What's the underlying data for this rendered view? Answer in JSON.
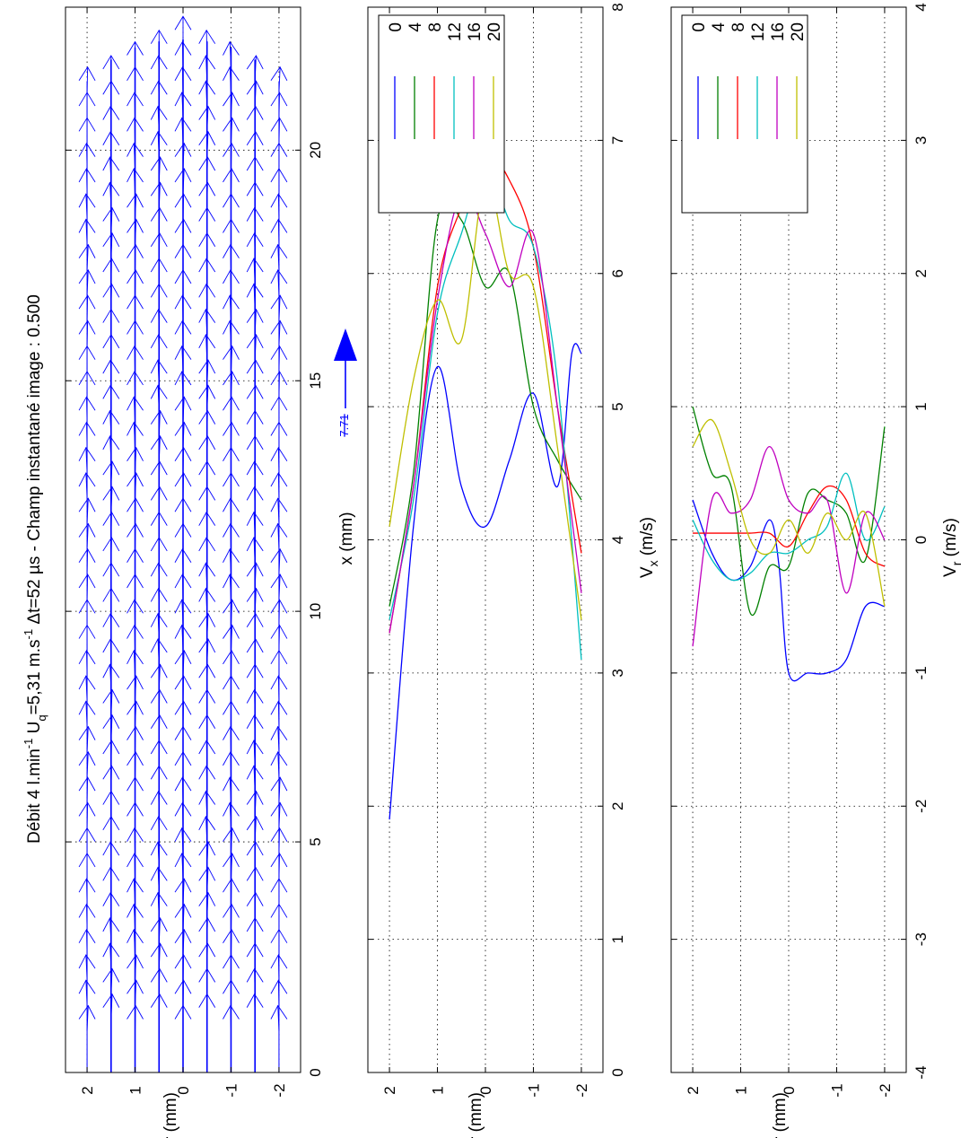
{
  "title": {
    "p1": "Débit 4 l.min",
    "sup1": "-1",
    "p2": " U",
    "sub1": "q",
    "p3": "=5,31 m.s",
    "sup2": "-1",
    "p4": " Δt=52 µs - Champ instantané image : 0.500"
  },
  "colors": {
    "blue": "#0000ff",
    "green": "#008000",
    "red": "#ff0000",
    "cyan": "#00bfbf",
    "magenta": "#bf00bf",
    "olive": "#bfbf00"
  },
  "chart_data": [
    {
      "type": "quiver",
      "xlabel": "x (mm)",
      "ylabel": "r (mm)",
      "xlim": [
        0,
        23.1
      ],
      "ylim": [
        -2.45,
        2.45
      ],
      "xticks": [
        "0",
        "5",
        "10",
        "15",
        "20"
      ],
      "yticks": [
        "2",
        "1",
        "0",
        "-1",
        "-2"
      ],
      "scale_label": "7.71",
      "grid": true
    },
    {
      "type": "line",
      "xlabel": "V",
      "xlabel_sub": "x",
      "xlabel_unit": " (m/s)",
      "ylabel": "r (mm)",
      "xlim": [
        0,
        8
      ],
      "ylim": [
        -2.45,
        2.45
      ],
      "xticks": [
        "0",
        "1",
        "2",
        "3",
        "4",
        "5",
        "6",
        "7",
        "8"
      ],
      "yticks": [
        "2",
        "1",
        "0",
        "-1",
        "-2"
      ],
      "legend": [
        "0",
        "4",
        "8",
        "12",
        "16",
        "20"
      ],
      "legend_position": "top-right",
      "grid": true,
      "series": [
        {
          "name": "0",
          "color": "#0000ff",
          "r": [
            2.0,
            1.5,
            1.0,
            0.5,
            0.0,
            -0.5,
            -1.0,
            -1.5,
            -1.8,
            -2.0
          ],
          "v": [
            1.9,
            4.1,
            5.3,
            4.4,
            4.1,
            4.6,
            5.1,
            4.4,
            5.4,
            5.4
          ]
        },
        {
          "name": "4",
          "color": "#008000",
          "r": [
            2.0,
            1.5,
            1.0,
            0.5,
            0.0,
            -0.5,
            -1.0,
            -1.5,
            -2.0
          ],
          "v": [
            3.5,
            4.5,
            6.4,
            6.4,
            5.9,
            6.0,
            5.0,
            4.6,
            4.3
          ]
        },
        {
          "name": "8",
          "color": "#ff0000",
          "r": [
            2.0,
            1.5,
            1.0,
            0.5,
            0.0,
            -0.5,
            -1.0,
            -1.5,
            -2.0
          ],
          "v": [
            3.3,
            4.4,
            5.9,
            6.5,
            6.9,
            6.7,
            6.2,
            5.0,
            3.9
          ]
        },
        {
          "name": "12",
          "color": "#00bfbf",
          "r": [
            2.0,
            1.5,
            1.0,
            0.5,
            0.0,
            -0.5,
            -1.0,
            -1.5,
            -2.0
          ],
          "v": [
            3.4,
            4.3,
            5.7,
            6.3,
            6.8,
            6.4,
            6.2,
            5.2,
            3.1
          ]
        },
        {
          "name": "16",
          "color": "#bf00bf",
          "r": [
            2.0,
            1.5,
            1.0,
            0.5,
            0.0,
            -0.5,
            -1.0,
            -1.5,
            -2.0
          ],
          "v": [
            3.3,
            4.4,
            5.8,
            6.6,
            6.3,
            5.9,
            6.3,
            5.0,
            3.6
          ]
        },
        {
          "name": "20",
          "color": "#bfbf00",
          "r": [
            2.0,
            1.5,
            1.0,
            0.5,
            0.0,
            -0.5,
            -1.0,
            -1.5,
            -2.0
          ],
          "v": [
            4.1,
            5.2,
            5.8,
            5.5,
            6.7,
            6.0,
            5.9,
            4.7,
            3.4
          ]
        }
      ]
    },
    {
      "type": "line",
      "xlabel": "V",
      "xlabel_sub": "r",
      "xlabel_unit": " (m/s)",
      "ylabel": "r (mm)",
      "xlim": [
        -4,
        4
      ],
      "ylim": [
        -2.45,
        2.45
      ],
      "xticks": [
        "-4",
        "-3",
        "-2",
        "-1",
        "0",
        "1",
        "2",
        "3",
        "4"
      ],
      "yticks": [
        "2",
        "1",
        "0",
        "-1",
        "-2"
      ],
      "legend": [
        "0",
        "4",
        "8",
        "12",
        "16",
        "20"
      ],
      "legend_position": "top-right",
      "grid": true,
      "series": [
        {
          "name": "0",
          "color": "#0000ff",
          "r": [
            2.0,
            1.6,
            1.2,
            0.8,
            0.4,
            0.2,
            0.0,
            -0.4,
            -0.8,
            -1.2,
            -1.6,
            -2.0
          ],
          "v": [
            0.3,
            -0.1,
            -0.3,
            -0.2,
            0.15,
            -0.2,
            -1.0,
            -1.0,
            -1.0,
            -0.9,
            -0.5,
            -0.5
          ]
        },
        {
          "name": "4",
          "color": "#008000",
          "r": [
            2.0,
            1.6,
            1.2,
            0.8,
            0.4,
            0.0,
            -0.4,
            -0.8,
            -1.2,
            -1.6,
            -2.0
          ],
          "v": [
            1.0,
            0.5,
            0.4,
            -0.55,
            -0.2,
            -0.2,
            0.35,
            0.3,
            0.2,
            -0.15,
            0.85
          ]
        },
        {
          "name": "8",
          "color": "#ff0000",
          "r": [
            2.0,
            1.6,
            1.2,
            0.8,
            0.4,
            0.0,
            -0.4,
            -0.8,
            -1.2,
            -1.6,
            -2.0
          ],
          "v": [
            0.05,
            0.05,
            0.05,
            0.05,
            0.05,
            -0.05,
            0.2,
            0.4,
            0.3,
            -0.1,
            -0.2
          ]
        },
        {
          "name": "12",
          "color": "#00bfbf",
          "r": [
            2.0,
            1.6,
            1.2,
            0.8,
            0.4,
            0.0,
            -0.4,
            -0.8,
            -1.2,
            -1.6,
            -2.0
          ],
          "v": [
            0.15,
            -0.15,
            -0.3,
            -0.25,
            -0.1,
            -0.1,
            0.0,
            0.1,
            0.5,
            0.0,
            0.25
          ]
        },
        {
          "name": "16",
          "color": "#bf00bf",
          "r": [
            2.0,
            1.6,
            1.2,
            0.8,
            0.4,
            0.0,
            -0.4,
            -0.8,
            -1.2,
            -1.6,
            -2.0
          ],
          "v": [
            -0.8,
            0.3,
            0.2,
            0.3,
            0.7,
            0.3,
            0.2,
            0.3,
            -0.4,
            0.2,
            0.0
          ]
        },
        {
          "name": "20",
          "color": "#bfbf00",
          "r": [
            2.0,
            1.6,
            1.2,
            0.8,
            0.4,
            0.0,
            -0.4,
            -0.8,
            -1.2,
            -1.6,
            -2.0
          ],
          "v": [
            0.7,
            0.9,
            0.5,
            0.0,
            -0.1,
            0.15,
            -0.1,
            0.2,
            0.0,
            0.2,
            -0.5
          ]
        }
      ]
    }
  ]
}
